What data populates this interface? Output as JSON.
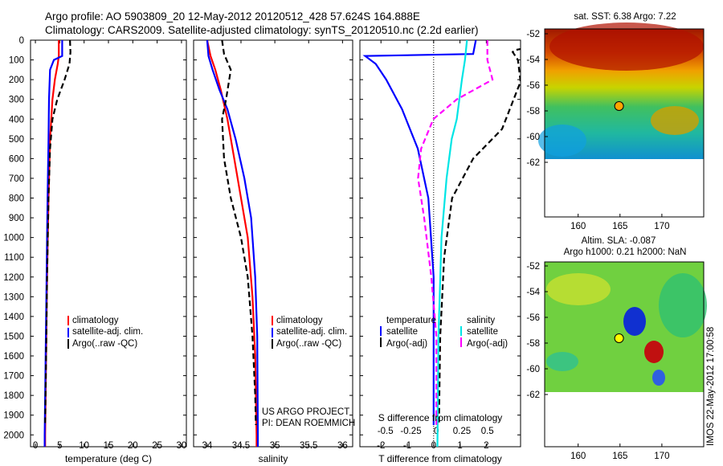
{
  "header": {
    "line1": "Argo profile: AO 5903809_20 12-May-2012 20120512_428 57.624S 164.888E",
    "line2": "Climatology: CARS2009. Satellite-adjusted climatology: synTS_20120510.nc (2.2d earlier)"
  },
  "side_text": "IMOS 22-May-2012 17:00:58",
  "credit": [
    "US ARGO PROJECT",
    "PI: DEAN ROEMMICH"
  ],
  "colors": {
    "clim": "#ff0000",
    "sat": "#0000ff",
    "argo": "#000000",
    "cyan": "#00e5e5",
    "magenta": "#ff00ff"
  },
  "chart_data": [
    {
      "type": "line",
      "xlabel": "temperature (deg C)",
      "ylabel": "",
      "xlim": [
        -1,
        31
      ],
      "ylim": [
        2060,
        0
      ],
      "xticks": [
        0,
        5,
        10,
        15,
        20,
        25,
        30
      ],
      "yticks": [
        0,
        100,
        200,
        300,
        400,
        500,
        600,
        700,
        800,
        900,
        1000,
        1100,
        1200,
        1300,
        1400,
        1500,
        1600,
        1700,
        1800,
        1900,
        2000
      ],
      "legend": {
        "placement": "bottom-center",
        "entries": [
          "climatology",
          "satellite-adj. clim.",
          "Argo(..raw -QC)"
        ]
      },
      "series": [
        {
          "name": "climatology",
          "color": "#ff0000",
          "style": "solid",
          "points": [
            [
              4.8,
              0
            ],
            [
              4.8,
              80
            ],
            [
              4.6,
              120
            ],
            [
              4.0,
              200
            ],
            [
              3.5,
              300
            ],
            [
              3.0,
              500
            ],
            [
              2.7,
              800
            ],
            [
              2.4,
              1200
            ],
            [
              2.2,
              1600
            ],
            [
              2.0,
              2000
            ],
            [
              2.0,
              2060
            ]
          ]
        },
        {
          "name": "satellite-adj. clim.",
          "color": "#0000ff",
          "style": "solid",
          "points": [
            [
              5.5,
              0
            ],
            [
              5.5,
              80
            ],
            [
              3.8,
              100
            ],
            [
              3.0,
              150
            ],
            [
              2.8,
              300
            ],
            [
              2.7,
              500
            ],
            [
              2.5,
              800
            ],
            [
              2.3,
              1200
            ],
            [
              2.1,
              1600
            ],
            [
              1.9,
              2000
            ],
            [
              1.9,
              2060
            ]
          ]
        },
        {
          "name": "Argo(..raw -QC)",
          "color": "#000000",
          "style": "dashed",
          "points": [
            [
              7.1,
              0
            ],
            [
              7.2,
              60
            ],
            [
              7.0,
              120
            ],
            [
              6.0,
              200
            ],
            [
              4.5,
              300
            ],
            [
              3.5,
              400
            ],
            [
              3.0,
              550
            ],
            [
              2.7,
              800
            ],
            [
              2.4,
              1200
            ],
            [
              2.2,
              1600
            ],
            [
              2.0,
              1950
            ]
          ]
        }
      ]
    },
    {
      "type": "line",
      "xlabel": "salinity",
      "ylabel": "",
      "xlim": [
        33.8,
        36.15
      ],
      "ylim": [
        2060,
        0
      ],
      "xticks": [
        34,
        34.5,
        35,
        35.5,
        36
      ],
      "xtick_labels": [
        "34",
        "34.5",
        "35",
        "35.5",
        "36"
      ],
      "legend": {
        "placement": "bottom-center",
        "entries": [
          "climatology",
          "satellite-adj. clim.",
          "Argo(..raw -QC)"
        ]
      },
      "series": [
        {
          "name": "climatology",
          "color": "#ff0000",
          "style": "solid",
          "points": [
            [
              34.0,
              0
            ],
            [
              34.05,
              80
            ],
            [
              34.12,
              150
            ],
            [
              34.2,
              250
            ],
            [
              34.3,
              400
            ],
            [
              34.4,
              600
            ],
            [
              34.5,
              800
            ],
            [
              34.6,
              1000
            ],
            [
              34.67,
              1300
            ],
            [
              34.71,
              1600
            ],
            [
              34.73,
              2000
            ],
            [
              34.73,
              2060
            ]
          ]
        },
        {
          "name": "satellite-adj. clim.",
          "color": "#0000ff",
          "style": "solid",
          "points": [
            [
              34.0,
              0
            ],
            [
              34.02,
              80
            ],
            [
              34.08,
              150
            ],
            [
              34.18,
              250
            ],
            [
              34.3,
              350
            ],
            [
              34.42,
              500
            ],
            [
              34.55,
              700
            ],
            [
              34.65,
              900
            ],
            [
              34.71,
              1200
            ],
            [
              34.74,
              1500
            ],
            [
              34.75,
              2000
            ],
            [
              34.75,
              2060
            ]
          ]
        },
        {
          "name": "Argo(..raw -QC)",
          "color": "#000000",
          "style": "dashed",
          "points": [
            [
              34.22,
              0
            ],
            [
              34.25,
              70
            ],
            [
              34.35,
              150
            ],
            [
              34.28,
              300
            ],
            [
              34.22,
              400
            ],
            [
              34.25,
              600
            ],
            [
              34.35,
              800
            ],
            [
              34.5,
              1000
            ],
            [
              34.6,
              1200
            ],
            [
              34.67,
              1500
            ],
            [
              34.71,
              1800
            ],
            [
              34.72,
              1950
            ]
          ]
        }
      ]
    },
    {
      "type": "line",
      "xlabel": "T difference from climatology",
      "xlabel2": "S difference from climatology",
      "xlim": [
        -2.8,
        3.3
      ],
      "ylim": [
        2060,
        0
      ],
      "xticks": [
        -2,
        -1,
        0,
        1,
        2
      ],
      "x2ticks": [
        -0.5,
        -0.25,
        0,
        0.25,
        0.5
      ],
      "x2tick_labels": [
        "-0.5",
        "-0.25",
        "0",
        "0.25",
        "0.5"
      ],
      "legend": {
        "placement": "bottom",
        "groups": [
          "temperature",
          "salinity"
        ],
        "entries": [
          "satellite",
          "Argo(-adj)",
          "satellite",
          "Argo(-adj)"
        ]
      },
      "series": [
        {
          "name": "satellite",
          "group": "temperature",
          "color": "#0000ff",
          "style": "solid",
          "points": [
            [
              1.6,
              0
            ],
            [
              1.5,
              70
            ],
            [
              -2.6,
              80
            ],
            [
              -2.2,
              120
            ],
            [
              -1.8,
              200
            ],
            [
              -1.2,
              350
            ],
            [
              -0.6,
              550
            ],
            [
              -0.2,
              800
            ],
            [
              0,
              1200
            ],
            [
              0,
              1600
            ],
            [
              0,
              1950
            ]
          ]
        },
        {
          "name": "Argo(-adj)",
          "group": "temperature",
          "color": "#000000",
          "style": "dashed",
          "points": [
            [
              5,
              0
            ],
            [
              3.1,
              50
            ],
            [
              3.0,
              60
            ],
            [
              3.2,
              100
            ],
            [
              3.3,
              210
            ],
            [
              2.6,
              450
            ],
            [
              1.5,
              600
            ],
            [
              0.7,
              800
            ],
            [
              0.4,
              1100
            ],
            [
              0.25,
              1500
            ],
            [
              0.2,
              1950
            ]
          ]
        },
        {
          "name": "satellite",
          "group": "salinity",
          "color": "#00e5e5",
          "style": "solid",
          "points": [
            [
              0.3,
              0
            ],
            [
              0.28,
              100
            ],
            [
              0.25,
              200
            ],
            [
              0.2,
              400
            ],
            [
              0.15,
              500
            ],
            [
              0.1,
              700
            ],
            [
              0.05,
              1000
            ],
            [
              0.02,
              1500
            ],
            [
              0.01,
              2060
            ]
          ]
        },
        {
          "name": "Argo(-adj)",
          "group": "salinity",
          "color": "#ff00ff",
          "style": "dashed",
          "points": [
            [
              0.5,
              0
            ],
            [
              0.5,
              100
            ],
            [
              0.55,
              200
            ],
            [
              0.2,
              300
            ],
            [
              -0.03,
              400
            ],
            [
              -0.15,
              550
            ],
            [
              -0.18,
              700
            ],
            [
              -0.12,
              900
            ],
            [
              -0.05,
              1200
            ],
            [
              0,
              1500
            ],
            [
              0,
              1950
            ]
          ]
        }
      ]
    },
    {
      "type": "heatmap",
      "title": "sat. SST: 6.38  Argo: 7.22",
      "xlim": [
        156,
        175
      ],
      "ylim": [
        -64,
        -52
      ],
      "xticks": [
        160,
        165,
        170
      ],
      "yticks": [
        -52,
        -54,
        -56,
        -58,
        -60,
        -62
      ],
      "marker": {
        "lon": 164.888,
        "lat": -57.624,
        "color": "#ffa500"
      }
    },
    {
      "type": "heatmap",
      "title": "Altim. SLA: -0.087",
      "subtitle": "Argo h1000: 0.21 h2000: NaN",
      "xlim": [
        156,
        175
      ],
      "ylim": [
        -64,
        -52
      ],
      "xticks": [
        160,
        165,
        170
      ],
      "yticks": [
        -52,
        -54,
        -56,
        -58,
        -60,
        -62
      ],
      "marker": {
        "lon": 164.888,
        "lat": -57.624,
        "color": "#ffff00"
      }
    }
  ]
}
